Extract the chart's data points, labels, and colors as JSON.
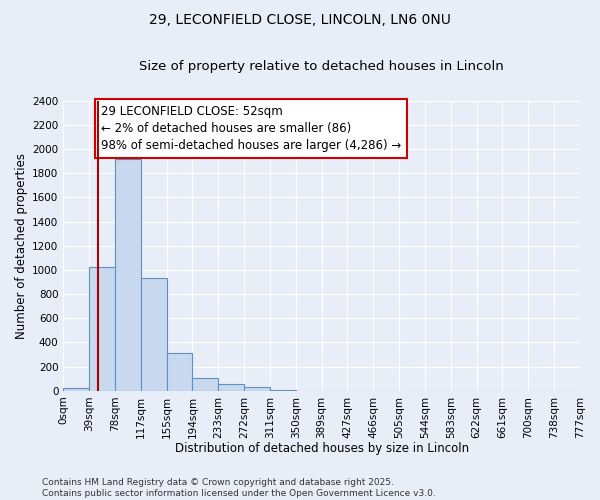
{
  "title_line1": "29, LECONFIELD CLOSE, LINCOLN, LN6 0NU",
  "title_line2": "Size of property relative to detached houses in Lincoln",
  "xlabel": "Distribution of detached houses by size in Lincoln",
  "ylabel": "Number of detached properties",
  "bin_labels": [
    "0sqm",
    "39sqm",
    "78sqm",
    "117sqm",
    "155sqm",
    "194sqm",
    "233sqm",
    "272sqm",
    "311sqm",
    "350sqm",
    "389sqm",
    "427sqm",
    "466sqm",
    "505sqm",
    "544sqm",
    "583sqm",
    "622sqm",
    "661sqm",
    "700sqm",
    "738sqm",
    "777sqm"
  ],
  "bar_values": [
    20,
    1025,
    1920,
    930,
    310,
    105,
    55,
    30,
    10,
    0,
    0,
    0,
    0,
    0,
    0,
    0,
    0,
    0,
    0,
    0
  ],
  "bar_color": "#c8d8ee",
  "bar_edge_color": "#6090c0",
  "background_color": "#e8eef8",
  "grid_color": "#ffffff",
  "vline_x": 1.33,
  "vline_color": "#aa0000",
  "annotation_text": "29 LECONFIELD CLOSE: 52sqm\n← 2% of detached houses are smaller (86)\n98% of semi-detached houses are larger (4,286) →",
  "annotation_box_color": "#cc0000",
  "ylim": [
    0,
    2400
  ],
  "yticks": [
    0,
    200,
    400,
    600,
    800,
    1000,
    1200,
    1400,
    1600,
    1800,
    2000,
    2200,
    2400
  ],
  "footer_text": "Contains HM Land Registry data © Crown copyright and database right 2025.\nContains public sector information licensed under the Open Government Licence v3.0.",
  "title_fontsize": 10,
  "subtitle_fontsize": 9.5,
  "axis_label_fontsize": 8.5,
  "tick_fontsize": 7.5,
  "annotation_fontsize": 8.5,
  "footer_fontsize": 6.5
}
